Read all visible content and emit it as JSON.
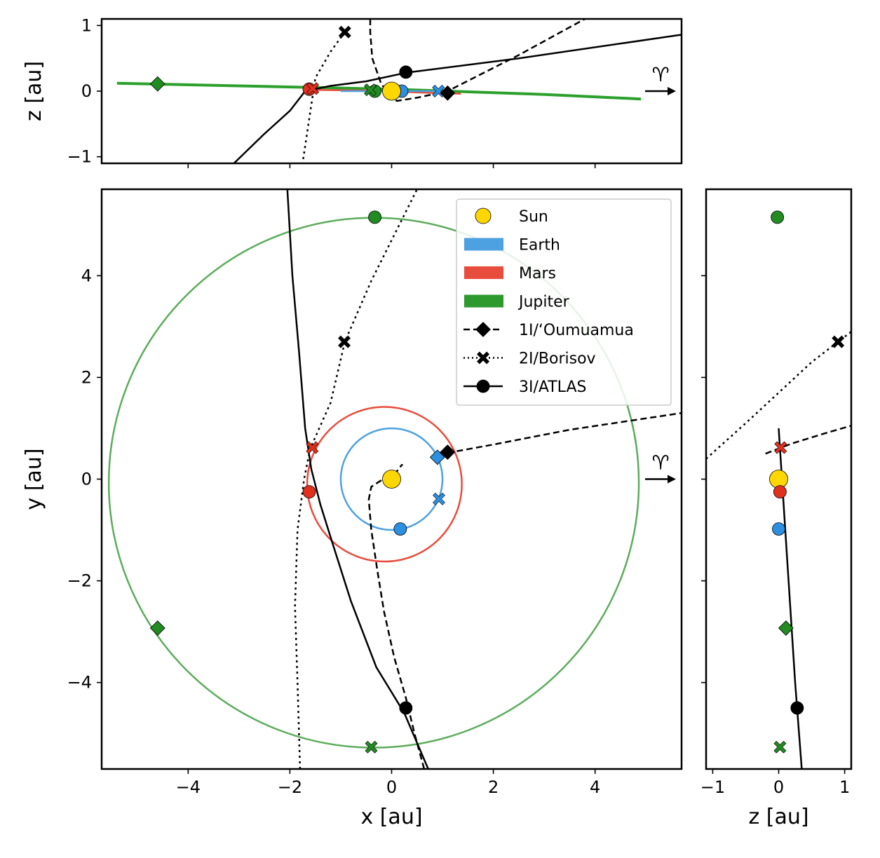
{
  "chart_data": [
    {
      "type": "line",
      "panel": "top",
      "xlabel": "",
      "ylabel": "z [au]",
      "xlim": [
        -5.7,
        5.7
      ],
      "ylim": [
        -1.1,
        1.1
      ],
      "xticks": [
        -4,
        -2,
        0,
        2,
        4
      ],
      "yticks": [
        -1,
        0,
        1
      ],
      "ytick_labels": [
        "−1",
        "0",
        "1"
      ],
      "annotation": "♈",
      "series": [
        {
          "name": "Jupiter",
          "color": "#2ca02c",
          "style": "solid",
          "x": [
            -5.4,
            -3.0,
            0.0,
            3.0,
            4.9
          ],
          "y": [
            0.12,
            0.08,
            0.03,
            -0.05,
            -0.12
          ]
        },
        {
          "name": "Mars",
          "color": "#e74c3c",
          "style": "solid",
          "x": [
            -1.66,
            -0.5,
            0.5,
            1.36
          ],
          "y": [
            0.02,
            0.01,
            -0.02,
            -0.04
          ]
        },
        {
          "name": "Earth",
          "color": "#4ea1e0",
          "style": "solid",
          "x": [
            -1.0,
            0.0,
            1.0
          ],
          "y": [
            0.0,
            0.0,
            0.0
          ]
        },
        {
          "name": "1I/‘Oumuamua",
          "color": "#000000",
          "style": "dashed",
          "x": [
            -0.42,
            -0.42,
            -0.38,
            -0.2,
            0.1,
            0.5,
            1.1,
            2.5,
            3.8
          ],
          "y": [
            1.1,
            0.9,
            0.5,
            0.1,
            -0.15,
            -0.1,
            0.0,
            0.55,
            1.1
          ]
        },
        {
          "name": "2I/Borisov",
          "color": "#000000",
          "style": "dotted",
          "x": [
            -0.92,
            -1.2,
            -1.5,
            -1.75
          ],
          "y": [
            0.9,
            0.6,
            0.2,
            -1.1
          ]
        },
        {
          "name": "3I/ATLAS",
          "color": "#000000",
          "style": "solid",
          "x": [
            -3.1,
            -2.5,
            -2.0,
            -1.7,
            -1.2,
            -0.5,
            0.28,
            2.5,
            5.7
          ],
          "y": [
            -1.1,
            -0.65,
            -0.3,
            0.0,
            0.08,
            0.15,
            0.28,
            0.5,
            0.86
          ]
        }
      ],
      "markers": [
        {
          "body": "Jupiter",
          "shape": "diamond",
          "x": -4.6,
          "y": 0.11
        },
        {
          "body": "Jupiter",
          "shape": "circle",
          "x": -0.33,
          "y": 0.0
        },
        {
          "body": "Jupiter",
          "shape": "cross",
          "x": -0.42,
          "y": 0.02
        },
        {
          "body": "Mars",
          "shape": "circle",
          "x": -1.62,
          "y": 0.03
        },
        {
          "body": "Mars",
          "shape": "cross",
          "x": -1.55,
          "y": 0.04
        },
        {
          "body": "Earth",
          "shape": "circle",
          "x": 0.2,
          "y": 0.0
        },
        {
          "body": "Earth",
          "shape": "cross",
          "x": 0.92,
          "y": 0.0
        },
        {
          "body": "Sun",
          "shape": "circle",
          "x": 0.0,
          "y": 0.0
        },
        {
          "body": "1I/‘Oumuamua",
          "shape": "diamond",
          "x": 1.1,
          "y": -0.03
        },
        {
          "body": "2I/Borisov",
          "shape": "cross",
          "x": -0.92,
          "y": 0.9
        },
        {
          "body": "3I/ATLAS",
          "shape": "circle",
          "x": 0.28,
          "y": 0.29
        }
      ]
    },
    {
      "type": "line",
      "panel": "main",
      "xlabel": "x [au]",
      "ylabel": "y [au]",
      "xlim": [
        -5.7,
        5.7
      ],
      "ylim": [
        -5.7,
        5.7
      ],
      "xticks": [
        -4,
        -2,
        0,
        2,
        4
      ],
      "xtick_labels": [
        "−4",
        "−2",
        "0",
        "2",
        "4"
      ],
      "yticks": [
        -4,
        -2,
        0,
        2,
        4
      ],
      "ytick_labels": [
        "−4",
        "−2",
        "0",
        "2",
        "4"
      ],
      "annotation": "♈",
      "legend": {
        "placement": "upper right",
        "entries": [
          {
            "label": "Sun",
            "kind": "circle",
            "color": "#ffd700"
          },
          {
            "label": "Earth",
            "kind": "patch",
            "color": "#4ea1e0"
          },
          {
            "label": "Mars",
            "kind": "patch",
            "color": "#e74c3c"
          },
          {
            "label": "Jupiter",
            "kind": "patch",
            "color": "#2e9a2e"
          },
          {
            "label": "1I/‘Oumuamua",
            "kind": "line-diamond",
            "color": "#000000"
          },
          {
            "label": "2I/Borisov",
            "kind": "line-cross",
            "color": "#000000"
          },
          {
            "label": "3I/ATLAS",
            "kind": "line-circle",
            "color": "#000000"
          }
        ]
      },
      "orbits": [
        {
          "name": "Earth",
          "color": "#4ea1e0",
          "cx": 0.0,
          "cy": 0.0,
          "r": 1.0
        },
        {
          "name": "Mars",
          "color": "#e74c3c",
          "cx": -0.14,
          "cy": -0.1,
          "r": 1.52
        },
        {
          "name": "Jupiter",
          "color": "#5cac5c",
          "cx": -0.35,
          "cy": -0.07,
          "r": 5.21
        }
      ],
      "series": [
        {
          "name": "1I/‘Oumuamua",
          "color": "#000000",
          "style": "dashed",
          "x": [
            0.64,
            0.45,
            0.28,
            0.05,
            -0.15,
            -0.28,
            -0.4,
            -0.45,
            -0.4,
            -0.2,
            -0.05,
            0.1,
            0.2,
            0.22
          ],
          "y": [
            -5.7,
            -5.0,
            -4.3,
            -3.5,
            -2.6,
            -1.8,
            -1.0,
            -0.4,
            -0.15,
            -0.02,
            0.05,
            0.15,
            0.28,
            0.28
          ]
        },
        {
          "name": "1I/‘Oumuamua (outbound)",
          "color": "#000000",
          "style": "dashed",
          "x": [
            0.9,
            2.0,
            3.5,
            5.7
          ],
          "y": [
            0.48,
            0.68,
            0.97,
            1.3
          ]
        },
        {
          "name": "2I/Borisov",
          "color": "#000000",
          "style": "dotted",
          "x": [
            -1.8,
            -1.85,
            -1.9,
            -1.85,
            -1.72,
            -1.6,
            -1.2,
            -0.92,
            -0.4,
            0.5
          ],
          "y": [
            -5.7,
            -4.0,
            -2.5,
            -1.0,
            0.0,
            0.6,
            1.5,
            2.7,
            3.9,
            5.7
          ]
        },
        {
          "name": "3I/ATLAS",
          "color": "#000000",
          "style": "solid",
          "x": [
            -2.05,
            -1.95,
            -1.82,
            -1.7,
            -1.58,
            -1.4,
            -1.15,
            -0.8,
            -0.3,
            0.25,
            0.72
          ],
          "y": [
            5.7,
            4.0,
            2.5,
            1.0,
            0.2,
            -0.5,
            -1.3,
            -2.4,
            -3.7,
            -4.6,
            -5.7
          ]
        }
      ],
      "markers": [
        {
          "body": "Sun",
          "shape": "circle",
          "x": 0.0,
          "y": 0.0
        },
        {
          "body": "Earth",
          "shape": "circle",
          "x": 0.17,
          "y": -0.98
        },
        {
          "body": "Earth",
          "shape": "cross",
          "x": 0.93,
          "y": -0.39
        },
        {
          "body": "Earth",
          "shape": "diamond",
          "x": 0.9,
          "y": 0.43
        },
        {
          "body": "Mars",
          "shape": "circle",
          "x": -1.62,
          "y": -0.25
        },
        {
          "body": "Mars",
          "shape": "cross",
          "x": -1.56,
          "y": 0.62
        },
        {
          "body": "Jupiter",
          "shape": "circle",
          "x": -0.33,
          "y": 5.15
        },
        {
          "body": "Jupiter",
          "shape": "diamond",
          "x": -4.6,
          "y": -2.93
        },
        {
          "body": "Jupiter",
          "shape": "cross",
          "x": -0.4,
          "y": -5.27
        },
        {
          "body": "1I/‘Oumuamua",
          "shape": "diamond",
          "x": 1.1,
          "y": 0.53
        },
        {
          "body": "2I/Borisov",
          "shape": "cross",
          "x": -0.93,
          "y": 2.7
        },
        {
          "body": "3I/ATLAS",
          "shape": "circle",
          "x": 0.28,
          "y": -4.5
        }
      ]
    },
    {
      "type": "line",
      "panel": "side",
      "xlabel": "z [au]",
      "ylabel": "",
      "xlim": [
        -1.1,
        1.1
      ],
      "ylim": [
        -5.7,
        5.7
      ],
      "xticks": [
        -1,
        0,
        1
      ],
      "xtick_labels": [
        "−1",
        "0",
        "1"
      ],
      "series": [
        {
          "name": "3I/ATLAS",
          "color": "#000000",
          "style": "solid",
          "x": [
            0.0,
            0.05,
            0.15,
            0.25,
            0.35
          ],
          "y": [
            1.0,
            0.0,
            -2.0,
            -4.0,
            -5.7
          ]
        },
        {
          "name": "1I/‘Oumuamua",
          "color": "#000000",
          "style": "dashed",
          "x": [
            -0.2,
            0.2,
            0.7,
            1.1
          ],
          "y": [
            0.5,
            0.7,
            0.9,
            1.05
          ]
        },
        {
          "name": "2I/Borisov",
          "color": "#000000",
          "style": "dotted",
          "x": [
            -1.1,
            -0.5,
            0.0,
            0.5,
            1.1
          ],
          "y": [
            0.4,
            1.1,
            1.7,
            2.3,
            2.9
          ]
        }
      ],
      "markers": [
        {
          "body": "Sun",
          "shape": "circle",
          "x": 0.0,
          "y": 0.0
        },
        {
          "body": "Jupiter",
          "shape": "circle",
          "x": -0.02,
          "y": 5.15
        },
        {
          "body": "Jupiter",
          "shape": "diamond",
          "x": 0.11,
          "y": -2.93
        },
        {
          "body": "Jupiter",
          "shape": "cross",
          "x": 0.02,
          "y": -5.27
        },
        {
          "body": "Mars",
          "shape": "circle",
          "x": 0.02,
          "y": -0.25
        },
        {
          "body": "Mars",
          "shape": "cross",
          "x": 0.03,
          "y": 0.62
        },
        {
          "body": "Earth",
          "shape": "circle",
          "x": 0.0,
          "y": -0.98
        },
        {
          "body": "2I/Borisov",
          "shape": "cross",
          "x": 0.9,
          "y": 2.7
        },
        {
          "body": "3I/ATLAS",
          "shape": "circle",
          "x": 0.28,
          "y": -4.5
        }
      ]
    }
  ]
}
